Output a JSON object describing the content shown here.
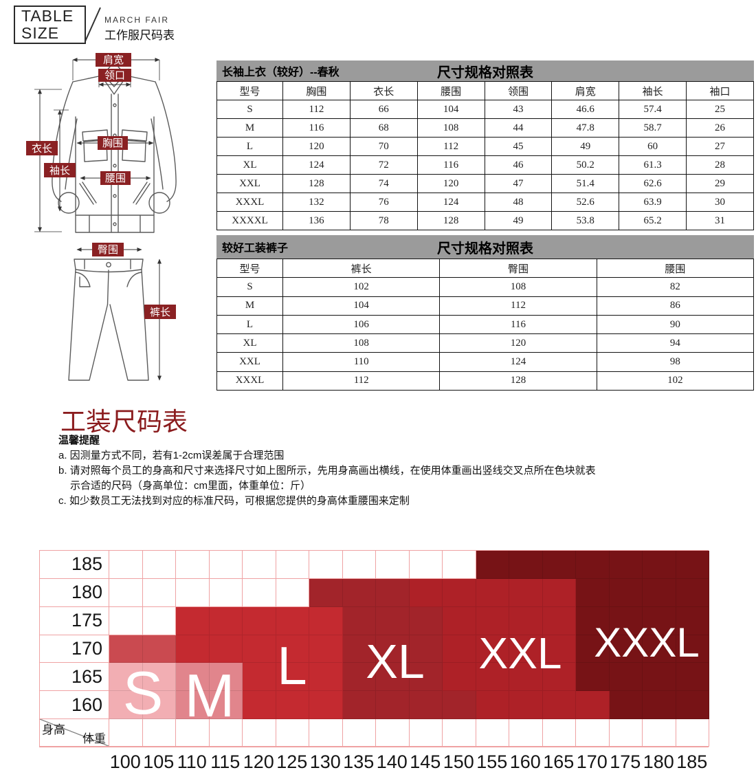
{
  "header": {
    "logo_line1": "TABLE",
    "logo_line2": "SIZE",
    "brand": "MARCH FAIR",
    "subtitle": "工作服尺码表"
  },
  "diagram": {
    "labels": {
      "shoulder": "肩宽",
      "collar": "领口",
      "jacket_length": "衣长",
      "sleeve_length": "袖长",
      "chest": "胸围",
      "waist": "腰围",
      "hip": "臀围",
      "pants_length": "裤长"
    },
    "label_bg": "#8A2123"
  },
  "tables": [
    {
      "title_left": "长袖上衣（较好）--春秋",
      "title_center": "尺寸规格对照表",
      "columns": [
        "型号",
        "胸围",
        "衣长",
        "腰围",
        "领围",
        "肩宽",
        "袖长",
        "袖口"
      ],
      "rows": [
        [
          "S",
          "112",
          "66",
          "104",
          "43",
          "46.6",
          "57.4",
          "25"
        ],
        [
          "M",
          "116",
          "68",
          "108",
          "44",
          "47.8",
          "58.7",
          "26"
        ],
        [
          "L",
          "120",
          "70",
          "112",
          "45",
          "49",
          "60",
          "27"
        ],
        [
          "XL",
          "124",
          "72",
          "116",
          "46",
          "50.2",
          "61.3",
          "28"
        ],
        [
          "XXL",
          "128",
          "74",
          "120",
          "47",
          "51.4",
          "62.6",
          "29"
        ],
        [
          "XXXL",
          "132",
          "76",
          "124",
          "48",
          "52.6",
          "63.9",
          "30"
        ],
        [
          "XXXXL",
          "136",
          "78",
          "128",
          "49",
          "53.8",
          "65.2",
          "31"
        ]
      ]
    },
    {
      "title_left": "较好工装裤子",
      "title_center": "尺寸规格对照表",
      "columns": [
        "型号",
        "裤长",
        "臀围",
        "腰围"
      ],
      "rows": [
        [
          "S",
          "102",
          "108",
          "82"
        ],
        [
          "M",
          "104",
          "112",
          "86"
        ],
        [
          "L",
          "106",
          "116",
          "90"
        ],
        [
          "XL",
          "108",
          "120",
          "94"
        ],
        [
          "XXL",
          "110",
          "124",
          "98"
        ],
        [
          "XXXL",
          "112",
          "128",
          "102"
        ]
      ]
    }
  ],
  "section": {
    "heading": "工装尺码表",
    "notice_title": "温馨提醒",
    "note_a": "a. 因测量方式不同，若有1-2cm误差属于合理范围",
    "note_b1": "b. 请对照每个员工的身高和尺寸来选择尺寸如上图所示，先用身高画出横线，在使用体重画出竖线交叉点所在色块就表",
    "note_b2": "示合适的尺码（身高单位：cm里面，体重单位：斤）",
    "note_c": "c. 如少数员工无法找到对应的标准尺码，可根据您提供的身高体重腰围来定制"
  },
  "chart_data": {
    "type": "heatmap",
    "title": "工装尺码表（身高/体重选码图）",
    "xlabel": "体重",
    "ylabel": "身高",
    "x_ticks": [
      "100",
      "105",
      "110",
      "115",
      "120",
      "125",
      "130",
      "135",
      "140",
      "145",
      "150",
      "155",
      "160",
      "165",
      "170",
      "175",
      "180",
      "185"
    ],
    "y_ticks": [
      "185",
      "180",
      "175",
      "170",
      "165",
      "160"
    ],
    "corner": {
      "top_left": "身高",
      "bottom_right": "体重"
    },
    "grid": true,
    "grid_color": "#EFA2A3",
    "palette": {
      "W": "#FFFFFF",
      "S": "#F2AEB3",
      "M": "#E1858C",
      "N": "#CA4A50",
      "L": "#C42A30",
      "X": "#A2242A",
      "Y": "#AE2127",
      "Z": "#771316"
    },
    "sizes": [
      "S",
      "M",
      "L",
      "XL",
      "XXL",
      "XXXL"
    ],
    "cells": [
      "WWWWWWWWWWWZZZZZZZ",
      "WWWWWWXXXYYYYYZZZZ",
      "WWLLLLLXXXYYYYZZZZ",
      "NNLLLLLXXXYYYYZZZZ",
      "SSMMLLLXXXYYYYZZZZ",
      "SSMMLLLXXXXYYYYZZZ"
    ],
    "zone_labels": [
      {
        "text": "S",
        "x": 151,
        "y": 208,
        "size": 88
      },
      {
        "text": "M",
        "x": 248,
        "y": 212,
        "size": 88
      },
      {
        "text": "L",
        "x": 368,
        "y": 168,
        "size": 78
      },
      {
        "text": "XL",
        "x": 518,
        "y": 162,
        "size": 70
      },
      {
        "text": "XXL",
        "x": 700,
        "y": 150,
        "size": 64
      },
      {
        "text": "XXXL",
        "x": 884,
        "y": 135,
        "size": 60
      }
    ]
  }
}
